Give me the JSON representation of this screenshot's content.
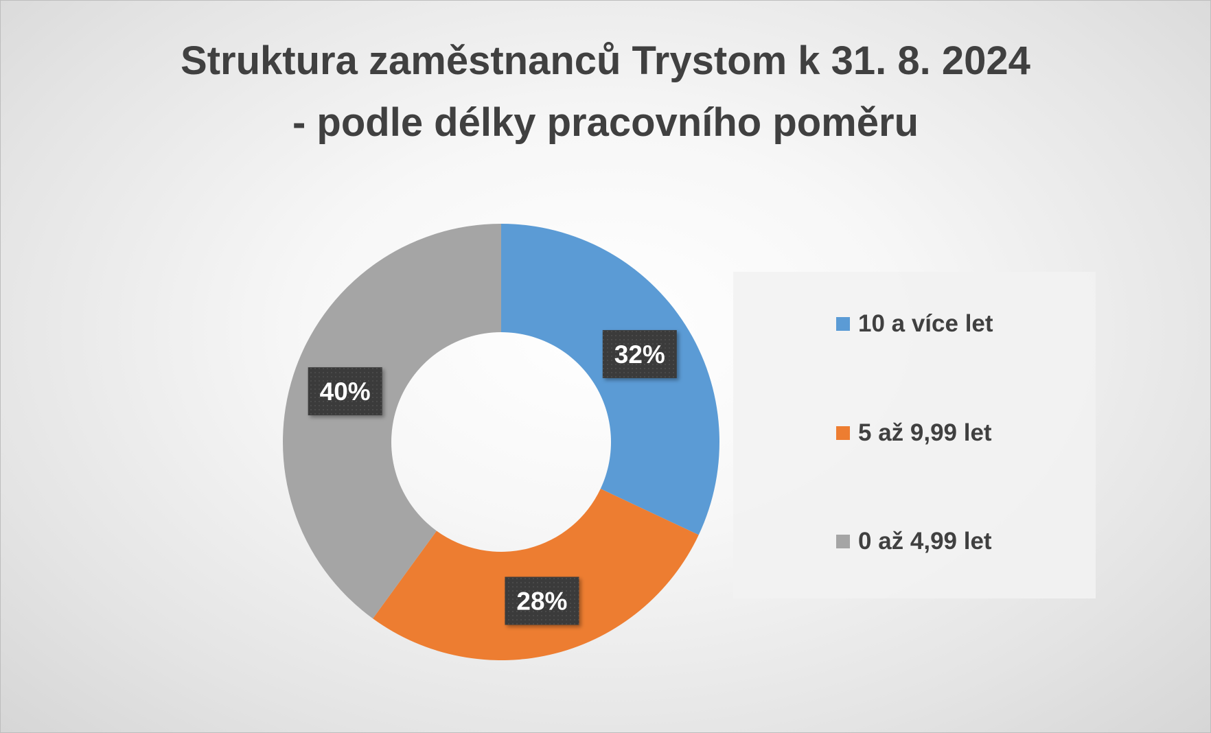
{
  "chart_data": {
    "type": "pie",
    "variant": "doughnut",
    "title": "Struktura zaměstnanců Trystom k 31. 8. 2024 - podle délky pracovního poměru",
    "title_lines": [
      "Struktura zaměstnanců Trystom k 31. 8. 2024",
      "- podle délky pracovního poměru"
    ],
    "categories": [
      "10 a více let",
      "5 až 9,99 let",
      "0 až 4,99 let"
    ],
    "values": [
      32,
      28,
      40
    ],
    "data_labels": [
      "32%",
      "28%",
      "40%"
    ],
    "colors": [
      "#5b9bd5",
      "#ed7d31",
      "#a5a5a5"
    ],
    "legend_position": "right"
  }
}
